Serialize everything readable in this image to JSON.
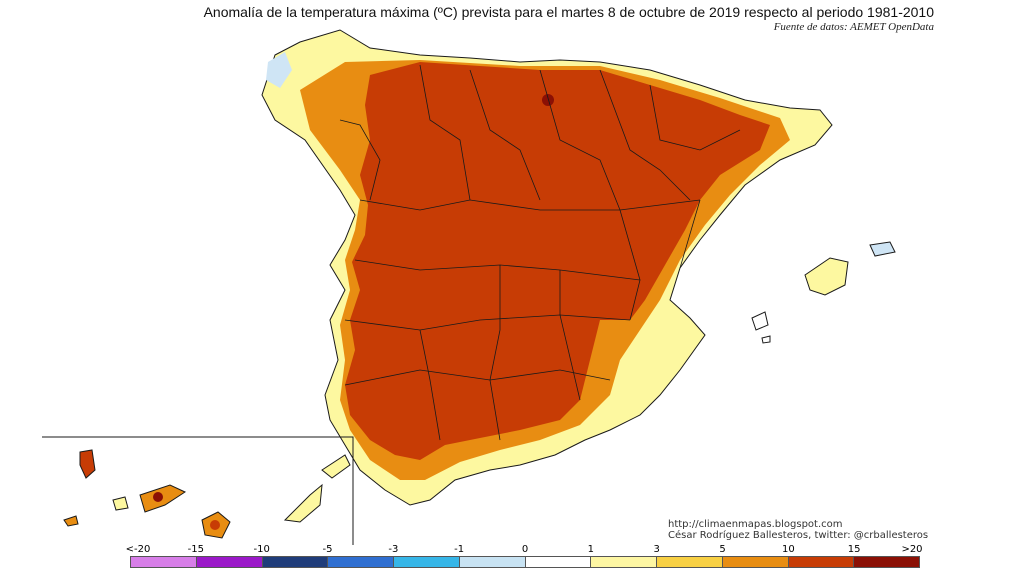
{
  "header": {
    "title": "Anomalía de la temperatura máxima (ºC) prevista para el martes 8 de octubre de 2019 respecto al periodo 1981-2010",
    "source": "Fuente de datos: AEMET OpenData"
  },
  "credits": {
    "url": "http://climaenmapas.blogspot.com",
    "author": "César Rodríguez Ballesteros, twitter: @crballesteros"
  },
  "legend": {
    "ticks": [
      "<-20",
      "-15",
      "-10",
      "-5",
      "-3",
      "-1",
      "0",
      "1",
      "3",
      "5",
      "10",
      "15",
      ">20"
    ],
    "colors": [
      "#d77ee8",
      "#9b19c9",
      "#1f3c7a",
      "#2f6fd1",
      "#36b6e8",
      "#c8e3f3",
      "#ffffff",
      "#fdf6a3",
      "#f8d044",
      "#e88d12",
      "#c73c05",
      "#8b1005"
    ]
  },
  "map_colors": {
    "strong_red": "#c73c05",
    "orange": "#e88d12",
    "yellow": "#fdf8a0",
    "light_blue": "#cfe5f5",
    "dark_red": "#8b1005",
    "border": "#1a1a1a"
  }
}
